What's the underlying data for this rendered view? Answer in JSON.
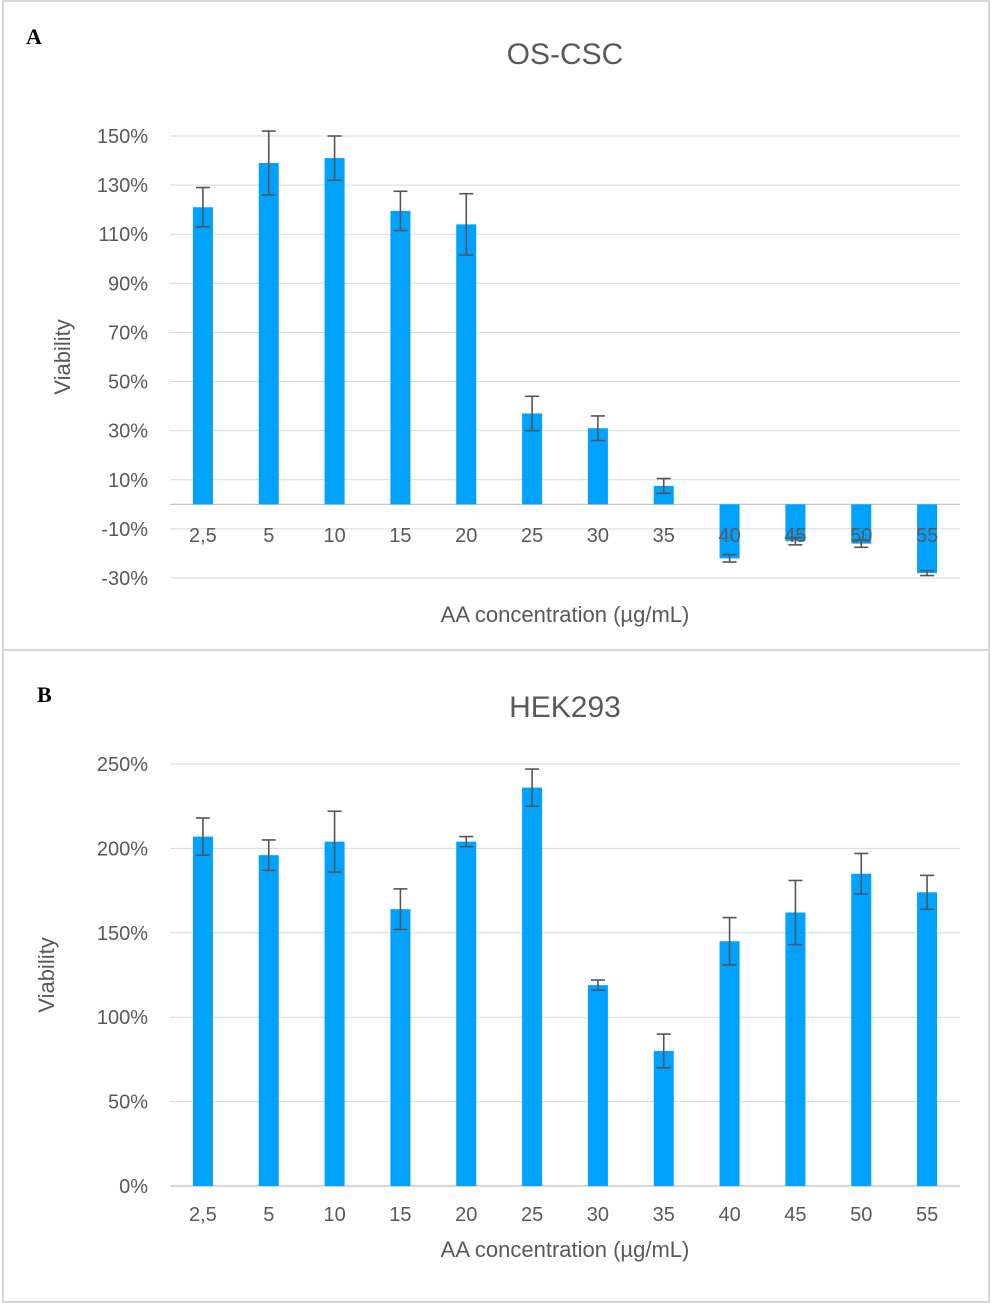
{
  "bar_color": "#00a2ff",
  "error_bar_color": "#555555",
  "grid_color": "#d9d9d9",
  "text_color": "#595959",
  "chart_data": [
    {
      "panel_label": "A",
      "type": "bar",
      "title": "OS-CSC",
      "xlabel": "AA concentration (µg/mL)",
      "ylabel": "Viability",
      "categories": [
        "2,5",
        "5",
        "10",
        "15",
        "20",
        "25",
        "30",
        "35",
        "40",
        "45",
        "50",
        "55"
      ],
      "values": [
        121,
        139,
        141,
        119.5,
        114,
        37,
        31,
        7.5,
        -22,
        -15,
        -16,
        -28
      ],
      "errors": [
        8,
        13,
        9,
        8,
        12.5,
        7,
        5,
        3,
        1.5,
        1.5,
        1.5,
        1
      ],
      "yticks": [
        -30,
        -10,
        10,
        30,
        50,
        70,
        90,
        110,
        130,
        150
      ],
      "ytick_labels": [
        "-30%",
        "-10%",
        "10%",
        "30%",
        "50%",
        "70%",
        "90%",
        "110%",
        "130%",
        "150%"
      ],
      "ylim": [
        -30,
        150
      ],
      "grid": true
    },
    {
      "panel_label": "B",
      "type": "bar",
      "title": "HEK293",
      "xlabel": "AA concentration (µg/mL)",
      "ylabel": "Viability",
      "categories": [
        "2,5",
        "5",
        "10",
        "15",
        "20",
        "25",
        "30",
        "35",
        "40",
        "45",
        "50",
        "55"
      ],
      "values": [
        207,
        196,
        204,
        164,
        204,
        236,
        119,
        80,
        145,
        162,
        185,
        174
      ],
      "errors": [
        11,
        9,
        18,
        12,
        3,
        11,
        3,
        10,
        14,
        19,
        12,
        10
      ],
      "yticks": [
        0,
        50,
        100,
        150,
        200,
        250
      ],
      "ytick_labels": [
        "0%",
        "50%",
        "100%",
        "150%",
        "200%",
        "250%"
      ],
      "ylim": [
        0,
        250
      ],
      "grid": true
    }
  ]
}
